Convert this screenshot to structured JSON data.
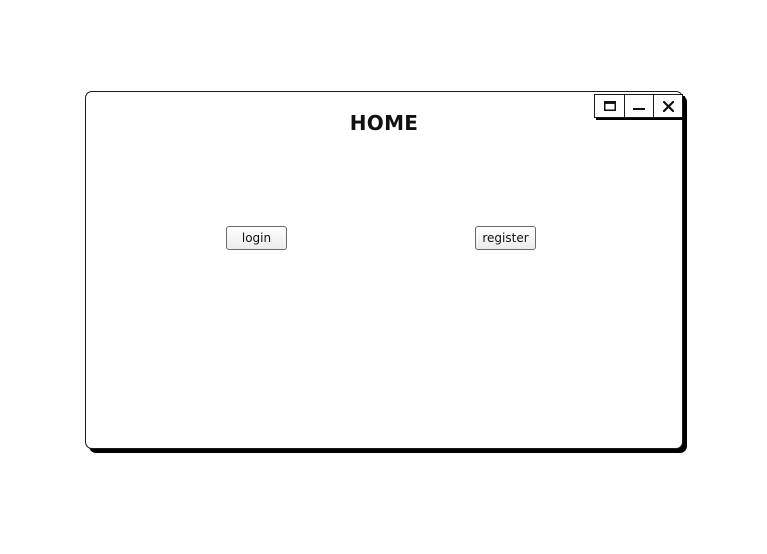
{
  "window": {
    "title": "HOME",
    "controls": {
      "maximize_icon": "maximize-icon",
      "minimize_icon": "minimize-icon",
      "close_icon": "close-icon"
    }
  },
  "buttons": {
    "login_label": "login",
    "register_label": "register"
  }
}
